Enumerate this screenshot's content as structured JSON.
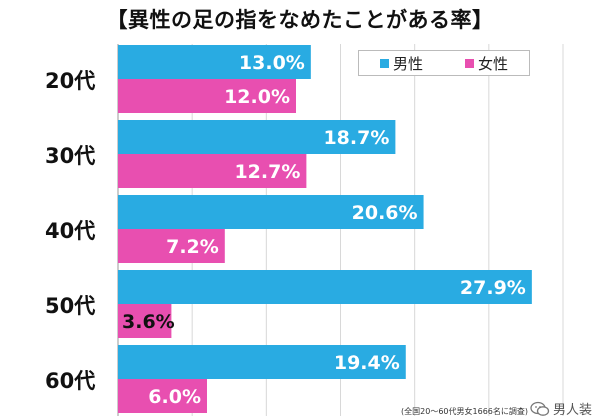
{
  "title": "【異性の足の指をなめたことがある率】",
  "legend": {
    "male": "男性",
    "female": "女性"
  },
  "colors": {
    "male": "#29abe2",
    "female": "#e84fb0",
    "grid": "#d8d8d8"
  },
  "footnote": "(全国20～60代男女1666名に調査)",
  "watermark": "男人装",
  "chart_data": {
    "type": "bar",
    "orientation": "horizontal",
    "title": "【異性の足の指をなめたことがある率】",
    "categories": [
      "20代",
      "30代",
      "40代",
      "50代",
      "60代"
    ],
    "series": [
      {
        "name": "男性",
        "values": [
          13.0,
          18.7,
          20.6,
          27.9,
          19.4
        ],
        "labels": [
          "13.0%",
          "18.7%",
          "20.6%",
          "27.9%",
          "19.4%"
        ]
      },
      {
        "name": "女性",
        "values": [
          12.0,
          12.7,
          7.2,
          3.6,
          6.0
        ],
        "labels": [
          "12.0%",
          "12.7%",
          "7.2%",
          "3.6%",
          "6.0%"
        ]
      }
    ],
    "xlim": [
      0,
      30
    ],
    "legend_position": "top-right"
  }
}
